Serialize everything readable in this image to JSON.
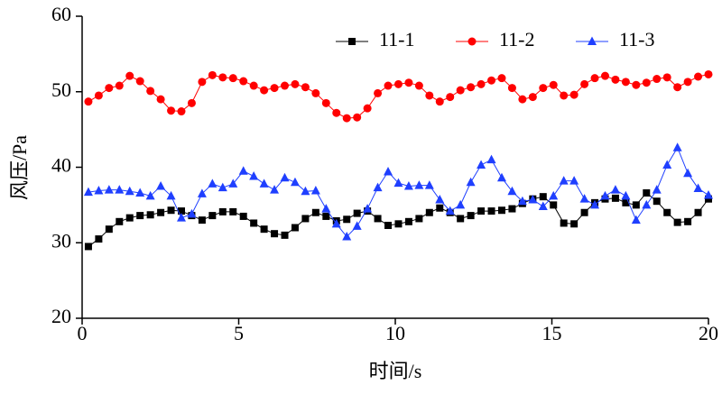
{
  "chart_data": {
    "type": "line",
    "xlabel": "时间/s",
    "ylabel": "风压/Pa",
    "xlim": [
      0,
      20
    ],
    "xticks": [
      0,
      5,
      10,
      15,
      20
    ],
    "ylim": [
      20,
      60
    ],
    "yticks": [
      20,
      30,
      40,
      50,
      60
    ],
    "legend": "upper center",
    "grid": false,
    "x": [
      0.2,
      0.53,
      0.86,
      1.19,
      1.52,
      1.85,
      2.18,
      2.51,
      2.84,
      3.17,
      3.5,
      3.83,
      4.16,
      4.49,
      4.82,
      5.15,
      5.48,
      5.81,
      6.14,
      6.47,
      6.8,
      7.13,
      7.46,
      7.79,
      8.12,
      8.45,
      8.78,
      9.11,
      9.44,
      9.77,
      10.1,
      10.43,
      10.76,
      11.09,
      11.42,
      11.75,
      12.08,
      12.41,
      12.74,
      13.07,
      13.4,
      13.73,
      14.06,
      14.39,
      14.72,
      15.05,
      15.38,
      15.71,
      16.04,
      16.37,
      16.7,
      17.03,
      17.36,
      17.69,
      18.02,
      18.35,
      18.68,
      19.01,
      19.34,
      19.67,
      20.0
    ],
    "series": [
      {
        "name": "11-1",
        "color": "#000000",
        "marker": "square",
        "values": [
          29.5,
          30.5,
          31.8,
          32.8,
          33.3,
          33.6,
          33.7,
          34.0,
          34.3,
          34.2,
          33.6,
          33.0,
          33.6,
          34.1,
          34.1,
          33.5,
          32.6,
          31.8,
          31.2,
          31.0,
          32.0,
          33.2,
          34.0,
          33.5,
          32.9,
          33.1,
          33.9,
          34.2,
          33.2,
          32.3,
          32.5,
          32.8,
          33.2,
          34.0,
          34.6,
          34.0,
          33.2,
          33.6,
          34.2,
          34.2,
          34.3,
          34.5,
          35.2,
          35.8,
          36.1,
          35.0,
          32.6,
          32.5,
          34.0,
          35.3,
          35.8,
          35.9,
          35.3,
          35.0,
          36.6,
          35.5,
          34.0,
          32.7,
          32.8,
          34.0,
          35.8
        ]
      },
      {
        "name": "11-2",
        "color": "#ff0000",
        "marker": "circle",
        "values": [
          48.7,
          49.5,
          50.5,
          50.8,
          52.1,
          51.4,
          50.1,
          49.0,
          47.5,
          47.4,
          48.5,
          51.3,
          52.2,
          51.9,
          51.8,
          51.4,
          50.8,
          50.2,
          50.5,
          50.8,
          51.0,
          50.6,
          49.8,
          48.5,
          47.2,
          46.5,
          46.6,
          47.8,
          49.8,
          50.8,
          51.0,
          51.2,
          50.8,
          49.5,
          48.7,
          49.3,
          50.2,
          50.6,
          51.0,
          51.5,
          51.8,
          50.5,
          49.0,
          49.3,
          50.5,
          50.9,
          49.5,
          49.6,
          51.0,
          51.8,
          52.1,
          51.6,
          51.3,
          50.9,
          51.2,
          51.7,
          51.9,
          50.6,
          51.3,
          52.0,
          52.3
        ]
      },
      {
        "name": "11-3",
        "color": "#1f3fff",
        "marker": "triangle",
        "values": [
          36.7,
          36.9,
          37.0,
          37.0,
          36.8,
          36.6,
          36.2,
          37.5,
          36.2,
          33.3,
          33.8,
          36.5,
          37.8,
          37.3,
          37.8,
          39.5,
          38.8,
          37.8,
          37.0,
          38.6,
          38.0,
          36.8,
          36.9,
          34.5,
          32.5,
          30.8,
          32.2,
          34.5,
          37.3,
          39.4,
          37.9,
          37.5,
          37.6,
          37.6,
          35.7,
          34.2,
          35.0,
          38.0,
          40.3,
          41.0,
          38.6,
          36.8,
          35.5,
          35.7,
          34.8,
          36.2,
          38.2,
          38.2,
          35.8,
          35.0,
          36.2,
          37.0,
          36.2,
          33.0,
          35.0,
          37.0,
          40.3,
          42.6,
          39.2,
          37.2,
          36.3
        ]
      }
    ]
  }
}
